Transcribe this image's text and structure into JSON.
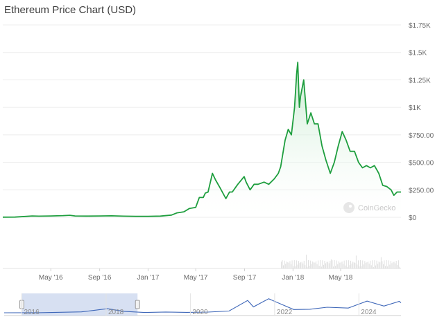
{
  "title": "Ethereum Price Chart (USD)",
  "watermark": "CoinGecko",
  "colors": {
    "line": "#1e9e3e",
    "area_top": "#bfe8c9",
    "grid": "#ececec",
    "label": "#6b6b6b",
    "navigator_fill": "#c9d6ee",
    "navigator_line": "#3d66b8"
  },
  "chart_data": {
    "type": "area",
    "title": "Ethereum Price Chart (USD)",
    "xlabel": "",
    "ylabel": "",
    "ylim": [
      0,
      1750
    ],
    "y_ticks": [
      "$0",
      "$250.00",
      "$500.00",
      "$750.00",
      "$1K",
      "$1.25K",
      "$1.5K",
      "$1.75K"
    ],
    "y_tick_values": [
      0,
      250,
      500,
      750,
      1000,
      1250,
      1500,
      1750
    ],
    "x_ticks": [
      "May '16",
      "Sep '16",
      "Jan '17",
      "May '17",
      "Sep '17",
      "Jan '18",
      "May '18"
    ],
    "x_tick_dates": [
      "2016-05-01",
      "2016-09-01",
      "2017-01-01",
      "2017-05-01",
      "2017-09-01",
      "2018-01-01",
      "2018-05-01"
    ],
    "xlim": [
      "2016-01-01",
      "2018-09-30"
    ],
    "grid": true,
    "legend": "none",
    "series": [
      {
        "dates": [
          "2016-01-01",
          "2016-02-01",
          "2016-03-01",
          "2016-03-15",
          "2016-04-01",
          "2016-05-01",
          "2016-06-01",
          "2016-06-18",
          "2016-07-01",
          "2016-08-01",
          "2016-09-01",
          "2016-10-01",
          "2016-11-01",
          "2016-12-01",
          "2017-01-01",
          "2017-02-01",
          "2017-03-01",
          "2017-03-15",
          "2017-04-01",
          "2017-04-15",
          "2017-05-01",
          "2017-05-10",
          "2017-05-20",
          "2017-05-25",
          "2017-06-01",
          "2017-06-12",
          "2017-06-20",
          "2017-07-01",
          "2017-07-16",
          "2017-07-25",
          "2017-08-01",
          "2017-08-15",
          "2017-08-31",
          "2017-09-05",
          "2017-09-15",
          "2017-09-25",
          "2017-10-05",
          "2017-10-20",
          "2017-11-01",
          "2017-11-15",
          "2017-11-25",
          "2017-12-01",
          "2017-12-12",
          "2017-12-20",
          "2017-12-28",
          "2018-01-05",
          "2018-01-10",
          "2018-01-13",
          "2018-01-17",
          "2018-01-20",
          "2018-01-28",
          "2018-02-06",
          "2018-02-15",
          "2018-02-24",
          "2018-03-05",
          "2018-03-15",
          "2018-03-25",
          "2018-04-05",
          "2018-04-15",
          "2018-04-25",
          "2018-05-05",
          "2018-05-15",
          "2018-05-25",
          "2018-06-05",
          "2018-06-15",
          "2018-06-25",
          "2018-07-05",
          "2018-07-15",
          "2018-07-25",
          "2018-08-05",
          "2018-08-15",
          "2018-08-25",
          "2018-09-05",
          "2018-09-12",
          "2018-09-20",
          "2018-09-30"
        ],
        "values": [
          1,
          2,
          8,
          12,
          10,
          12,
          15,
          18,
          12,
          11,
          12,
          13,
          10,
          8,
          8,
          11,
          20,
          40,
          50,
          80,
          90,
          180,
          180,
          220,
          230,
          400,
          340,
          270,
          170,
          230,
          230,
          300,
          370,
          320,
          250,
          300,
          300,
          320,
          300,
          350,
          400,
          460,
          700,
          800,
          750,
          1000,
          1300,
          1410,
          1000,
          1100,
          1250,
          850,
          950,
          850,
          850,
          650,
          520,
          400,
          500,
          650,
          780,
          700,
          600,
          600,
          500,
          450,
          470,
          450,
          470,
          400,
          290,
          280,
          250,
          200,
          230,
          230
        ]
      }
    ]
  },
  "navigator": {
    "year_labels": [
      "2016",
      "2018",
      "2020",
      "2022",
      "2024"
    ],
    "year_dates": [
      "2016-01-01",
      "2018-01-01",
      "2020-01-01",
      "2022-01-01",
      "2024-01-01"
    ],
    "xlim": [
      "2015-08-01",
      "2024-12-31"
    ],
    "selected_range": [
      "2016-01-01",
      "2018-09-30"
    ],
    "dates": [
      "2015-08-01",
      "2016-06-01",
      "2017-06-01",
      "2018-01-13",
      "2018-06-01",
      "2018-12-01",
      "2019-06-01",
      "2019-12-01",
      "2020-06-01",
      "2020-12-01",
      "2021-05-12",
      "2021-07-01",
      "2021-11-10",
      "2022-03-01",
      "2022-06-15",
      "2022-11-01",
      "2023-04-01",
      "2023-10-01",
      "2024-03-12",
      "2024-08-05",
      "2024-12-16",
      "2024-12-31"
    ],
    "values": [
      1,
      14,
      300,
      1400,
      500,
      100,
      270,
      130,
      240,
      600,
      4200,
      2000,
      4800,
      2900,
      1100,
      1200,
      1900,
      1600,
      4000,
      2300,
      3900,
      3400
    ]
  }
}
